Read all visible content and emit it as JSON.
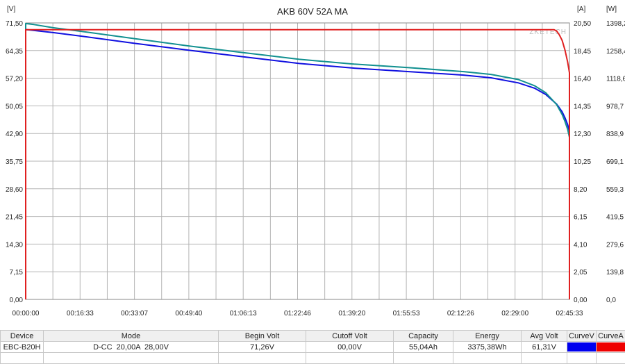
{
  "chart_data": {
    "type": "line",
    "title": "AKB 60V 52A MA",
    "watermark": "ZKETECH",
    "left_unit": "[V]",
    "right_units": [
      "[A]",
      "[W]"
    ],
    "y_ticks_voltage": [
      "0,00",
      "7,15",
      "14,30",
      "21,45",
      "28,60",
      "35,75",
      "42,90",
      "50,05",
      "57,20",
      "64,35",
      "71,50"
    ],
    "y_ticks_current": [
      "0,00",
      "2,05",
      "4,10",
      "6,15",
      "8,20",
      "10,25",
      "12,30",
      "14,35",
      "16,40",
      "18,45",
      "20,50"
    ],
    "y_ticks_power": [
      "0,0",
      "139,8",
      "279,6",
      "419,5",
      "559,3",
      "699,1",
      "838,9",
      "978,7",
      "1118,6",
      "1258,4",
      "1398,2"
    ],
    "ylim_voltage": [
      0,
      71.5
    ],
    "ylim_current": [
      0,
      20.5
    ],
    "ylim_power": [
      0,
      1398.2
    ],
    "x_ticks": [
      "00:00:00",
      "00:16:33",
      "00:33:07",
      "00:49:40",
      "01:06:13",
      "01:22:46",
      "01:39:20",
      "01:55:53",
      "02:12:26",
      "02:29:00",
      "02:45:33"
    ],
    "xlim_seconds": [
      0,
      9933
    ],
    "grid": true,
    "series": [
      {
        "name": "CurveV",
        "axis": "voltage",
        "color": "#1010e0",
        "x": [
          0,
          500,
          1000,
          2000,
          3000,
          4000,
          5000,
          6000,
          7000,
          8000,
          8500,
          9000,
          9300,
          9500,
          9700,
          9800,
          9850,
          9900,
          9933
        ],
        "y": [
          69.8,
          69.0,
          68.1,
          66.2,
          64.4,
          62.7,
          61.0,
          59.8,
          58.9,
          58.0,
          57.3,
          56.0,
          54.6,
          53.0,
          50.5,
          48.5,
          47.0,
          45.2,
          43.5
        ]
      },
      {
        "name": "Power",
        "axis": "power",
        "color": "#119090",
        "x": [
          0,
          150,
          500,
          1000,
          2000,
          3000,
          4000,
          5000,
          6000,
          7000,
          8000,
          8500,
          9000,
          9300,
          9500,
          9700,
          9800,
          9850,
          9900,
          9933
        ],
        "y": [
          1395,
          1390,
          1374,
          1356,
          1318,
          1281,
          1247,
          1214,
          1190,
          1172,
          1152,
          1138,
          1112,
          1080,
          1045,
          985,
          935,
          900,
          860,
          820
        ]
      },
      {
        "name": "CurveA",
        "axis": "current",
        "color": "#e02020",
        "x": [
          0,
          30,
          9300,
          9650,
          9700,
          9750,
          9800,
          9850,
          9900,
          9933
        ],
        "y": [
          20.0,
          20.0,
          20.0,
          20.0,
          19.9,
          19.6,
          19.2,
          18.5,
          17.6,
          16.8
        ]
      }
    ]
  },
  "table": {
    "headers": [
      "Device",
      "Mode",
      "Begin Volt",
      "Cutoff Volt",
      "Capacity",
      "Energy",
      "Avg Volt",
      "CurveV",
      "CurveA"
    ],
    "row": [
      "EBC-B20H",
      "D-CC  20,00A  28,00V",
      "71,26V",
      "00,00V",
      "55,04Ah",
      "3375,38Wh",
      "61,31V"
    ],
    "swatch_colors": [
      "#0000ee",
      "#ee0000"
    ]
  }
}
